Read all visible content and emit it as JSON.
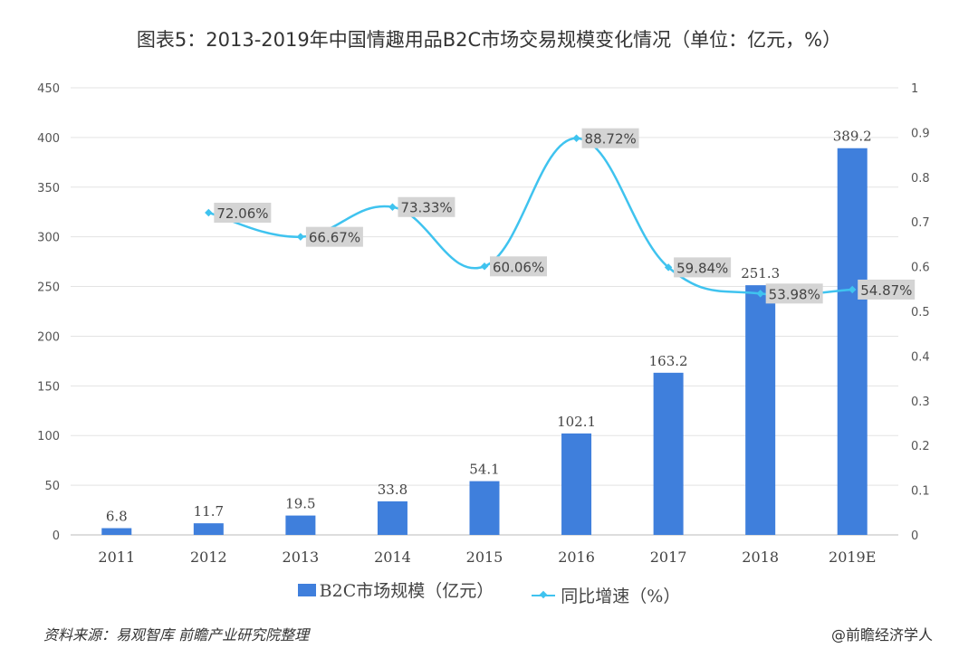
{
  "chart_data": {
    "type": "bar+line",
    "title": "图表5：2013-2019年中国情趣用品B2C市场交易规模变化情况（单位：亿元，%）",
    "categories": [
      "2011",
      "2012",
      "2013",
      "2014",
      "2015",
      "2016",
      "2017",
      "2018",
      "2019E"
    ],
    "series": [
      {
        "name": "B2C市场规模（亿元）",
        "type": "bar",
        "axis": "left",
        "color": "#3f7fdc",
        "values": [
          6.8,
          11.7,
          19.5,
          33.8,
          54.1,
          102.1,
          163.2,
          251.3,
          389.2
        ],
        "labels": [
          "6.8",
          "11.7",
          "19.5",
          "33.8",
          "54.1",
          "102.1",
          "163.2",
          "251.3",
          "389.2"
        ]
      },
      {
        "name": "同比增速（%）",
        "type": "line",
        "axis": "right",
        "color": "#3fc3ef",
        "values": [
          null,
          0.7206,
          0.6667,
          0.7333,
          0.6006,
          0.8872,
          0.5984,
          0.5398,
          0.5487
        ],
        "labels": [
          "",
          "72.06%",
          "66.67%",
          "73.33%",
          "60.06%",
          "88.72%",
          "59.84%",
          "53.98%",
          "54.87%"
        ]
      }
    ],
    "y_left": {
      "range": [
        0,
        450
      ],
      "ticks": [
        "0",
        "50",
        "100",
        "150",
        "200",
        "250",
        "300",
        "350",
        "400",
        "450"
      ]
    },
    "y_right": {
      "range": [
        0,
        1
      ],
      "ticks": [
        "0",
        "0.1",
        "0.2",
        "0.3",
        "0.4",
        "0.5",
        "0.6",
        "0.7",
        "0.8",
        "0.9",
        "1"
      ]
    },
    "grid": true,
    "legend": "bottom"
  },
  "source": "资料来源：易观智库 前瞻产业研究院整理",
  "credit": "@前瞻经济学人"
}
